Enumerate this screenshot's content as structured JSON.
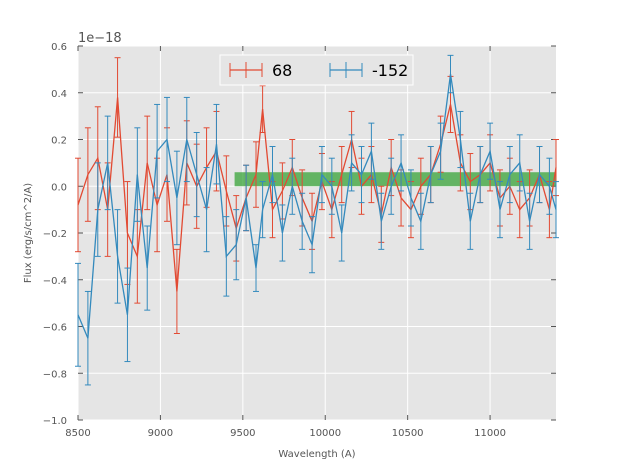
{
  "chart_data": {
    "type": "line",
    "title": "",
    "xlabel": "Wavelength (A)",
    "ylabel": "Flux (erg/s/cm^2/A)",
    "offset_text": "1e−18",
    "xlim": [
      8500,
      11400
    ],
    "ylim": [
      -1.0,
      0.6
    ],
    "xticks": [
      8500,
      9000,
      9500,
      10000,
      10500,
      11000
    ],
    "xtick_labels": [
      "8500",
      "9000",
      "9500",
      "10000",
      "10500",
      "11000"
    ],
    "yticks": [
      -1.0,
      -0.8,
      -0.6,
      -0.4,
      -0.2,
      0.0,
      0.2,
      0.4,
      0.6
    ],
    "ytick_labels": [
      "−1.0",
      "−0.8",
      "−0.6",
      "−0.4",
      "−0.2",
      "0.0",
      "0.2",
      "0.4",
      "0.6"
    ],
    "grid": true,
    "legend_position": "top-center",
    "band": {
      "x_start": 9450,
      "x_end": 11400,
      "y_low": 0.0,
      "y_high": 0.06,
      "color": "#2ca02c"
    },
    "series": [
      {
        "name": "68",
        "color": "#e24a33",
        "x": [
          8500,
          8560,
          8620,
          8680,
          8740,
          8800,
          8860,
          8920,
          8980,
          9040,
          9100,
          9160,
          9220,
          9280,
          9340,
          9400,
          9460,
          9520,
          9580,
          9620,
          9680,
          9740,
          9800,
          9860,
          9920,
          9980,
          10040,
          10100,
          10160,
          10220,
          10280,
          10340,
          10400,
          10460,
          10520,
          10580,
          10640,
          10700,
          10760,
          10820,
          10880,
          10940,
          11000,
          11060,
          11120,
          11180,
          11240,
          11300,
          11360,
          11400
        ],
        "y": [
          -0.08,
          0.05,
          0.12,
          -0.1,
          0.38,
          -0.2,
          -0.3,
          0.1,
          -0.08,
          0.05,
          -0.45,
          0.1,
          0.0,
          0.08,
          0.15,
          -0.02,
          -0.18,
          -0.05,
          0.05,
          0.33,
          -0.1,
          -0.02,
          0.08,
          -0.05,
          -0.15,
          0.02,
          -0.1,
          0.05,
          0.2,
          0.0,
          0.05,
          -0.12,
          0.08,
          -0.05,
          -0.1,
          0.0,
          0.05,
          0.18,
          0.35,
          0.1,
          0.02,
          0.05,
          0.1,
          -0.05,
          0.0,
          -0.1,
          -0.05,
          0.05,
          -0.1,
          0.08
        ],
        "err": [
          0.2,
          0.2,
          0.22,
          0.2,
          0.17,
          0.22,
          0.2,
          0.2,
          0.2,
          0.2,
          0.18,
          0.18,
          0.18,
          0.17,
          0.17,
          0.15,
          0.14,
          0.14,
          0.14,
          0.1,
          0.12,
          0.12,
          0.12,
          0.12,
          0.12,
          0.12,
          0.12,
          0.12,
          0.12,
          0.12,
          0.12,
          0.12,
          0.12,
          0.12,
          0.12,
          0.12,
          0.12,
          0.12,
          0.12,
          0.12,
          0.12,
          0.12,
          0.12,
          0.12,
          0.12,
          0.12,
          0.12,
          0.12,
          0.12,
          0.12
        ]
      },
      {
        "name": "-152",
        "color": "#348abd",
        "x": [
          8500,
          8560,
          8620,
          8680,
          8740,
          8800,
          8860,
          8920,
          8980,
          9040,
          9100,
          9160,
          9220,
          9280,
          9340,
          9400,
          9460,
          9520,
          9580,
          9620,
          9680,
          9740,
          9800,
          9860,
          9920,
          9980,
          10040,
          10100,
          10160,
          10220,
          10280,
          10340,
          10400,
          10460,
          10520,
          10580,
          10640,
          10700,
          10760,
          10820,
          10880,
          10940,
          11000,
          11060,
          11120,
          11180,
          11240,
          11300,
          11360,
          11400
        ],
        "y": [
          -0.55,
          -0.65,
          -0.1,
          0.1,
          -0.3,
          -0.55,
          0.05,
          -0.35,
          0.15,
          0.2,
          -0.05,
          0.2,
          0.05,
          -0.1,
          0.18,
          -0.3,
          -0.25,
          -0.05,
          -0.35,
          -0.1,
          0.05,
          -0.2,
          0.0,
          -0.15,
          -0.25,
          0.05,
          0.0,
          -0.2,
          0.1,
          0.05,
          0.15,
          -0.15,
          0.0,
          0.1,
          -0.05,
          -0.15,
          0.05,
          0.15,
          0.48,
          0.2,
          -0.15,
          0.05,
          0.15,
          -0.1,
          0.05,
          0.1,
          -0.15,
          0.05,
          0.0,
          -0.1
        ],
        "err": [
          0.22,
          0.2,
          0.2,
          0.2,
          0.2,
          0.2,
          0.2,
          0.18,
          0.2,
          0.18,
          0.2,
          0.18,
          0.18,
          0.18,
          0.17,
          0.17,
          0.15,
          0.14,
          0.1,
          0.12,
          0.12,
          0.12,
          0.12,
          0.12,
          0.12,
          0.12,
          0.12,
          0.12,
          0.12,
          0.12,
          0.12,
          0.12,
          0.12,
          0.12,
          0.12,
          0.12,
          0.12,
          0.12,
          0.08,
          0.12,
          0.12,
          0.12,
          0.12,
          0.12,
          0.12,
          0.12,
          0.12,
          0.12,
          0.12,
          0.12
        ]
      }
    ]
  }
}
